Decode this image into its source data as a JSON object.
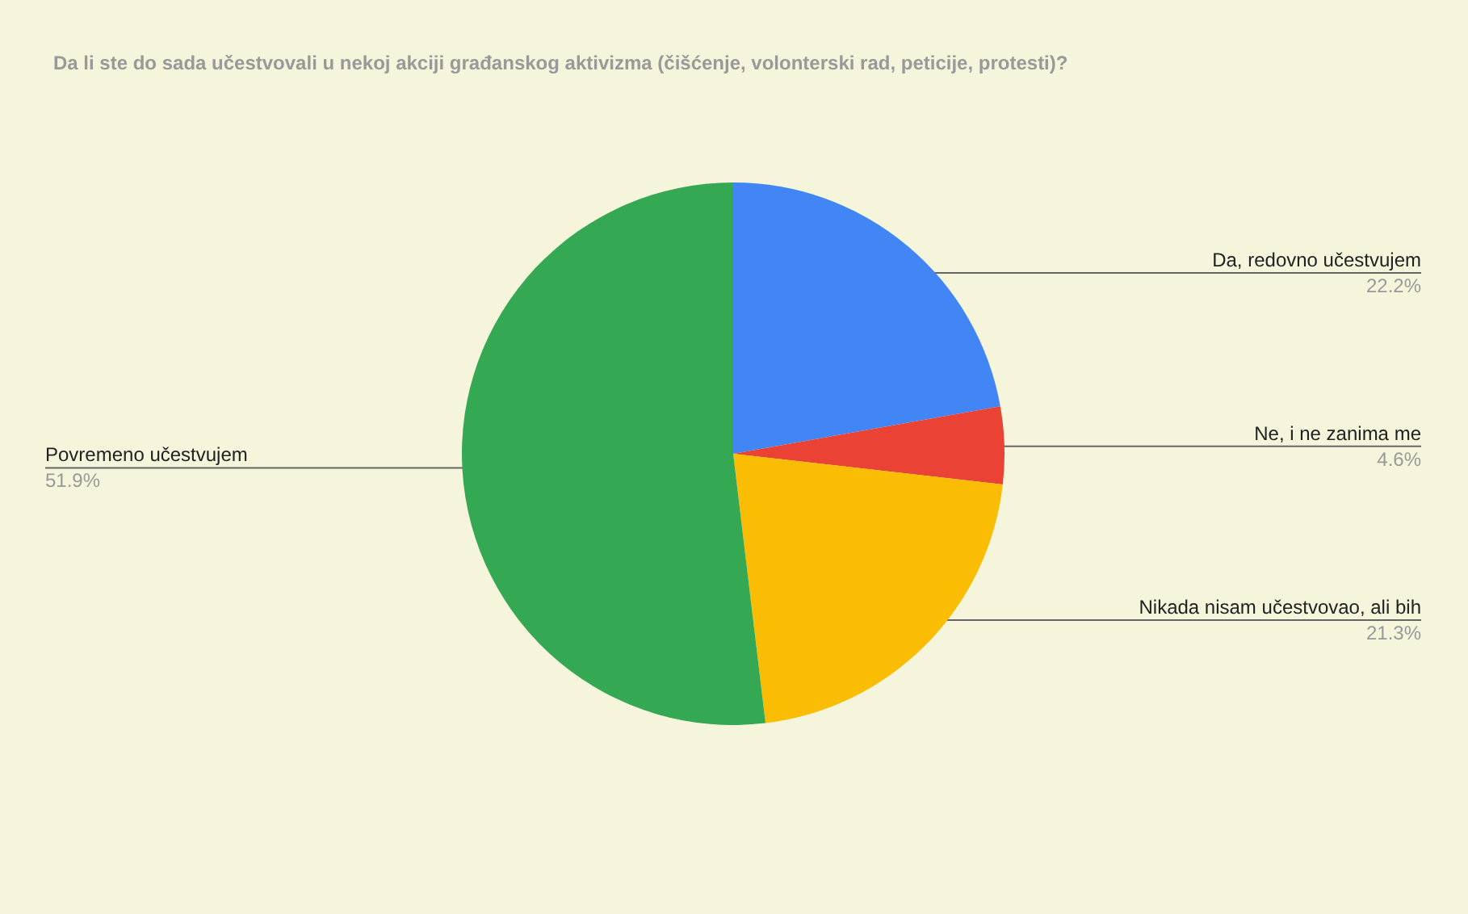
{
  "chart_data": {
    "type": "pie",
    "title": "Da li ste do sada učestvovali u nekoj akciji građanskog aktivizma (čišćenje, volonterski rad, peticije, protesti)?",
    "categories": [
      "Da, redovno učestvujem",
      "Ne, i ne zanima me",
      "Nikada nisam učestvovao, ali bih",
      "Povremeno učestvujem"
    ],
    "values": [
      22.2,
      4.6,
      21.3,
      51.9
    ],
    "colors": [
      "#4285f4",
      "#ea4335",
      "#fbbc04",
      "#34a853"
    ],
    "value_labels": [
      "22.2%",
      "4.6%",
      "21.3%",
      "51.9%"
    ]
  }
}
